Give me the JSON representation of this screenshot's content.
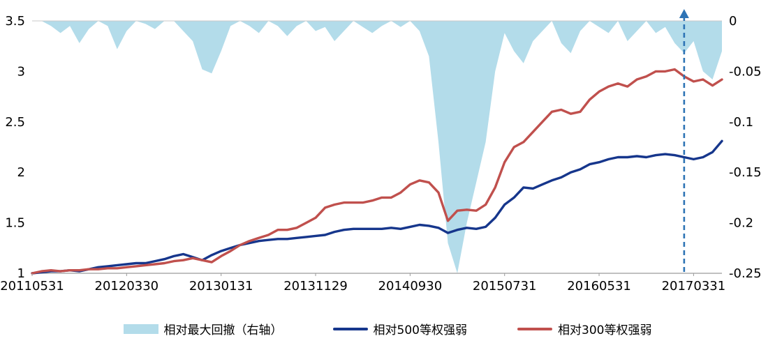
{
  "chart_data": {
    "type": "line",
    "title": "",
    "x_tick_labels": [
      "20110531",
      "20120330",
      "20130131",
      "20131129",
      "20140930",
      "20150731",
      "20160531",
      "20170331"
    ],
    "x_tick_indices": [
      0,
      10,
      20,
      30,
      40,
      50,
      60,
      70
    ],
    "left_axis": {
      "min": 1,
      "max": 3.5,
      "ticks": [
        1,
        1.5,
        2,
        2.5,
        3,
        3.5
      ]
    },
    "right_axis": {
      "min": -0.25,
      "max": 0,
      "ticks": [
        0,
        -0.05,
        -0.1,
        -0.15,
        -0.2,
        -0.25
      ]
    },
    "grid": "off",
    "legend_position": "bottom",
    "series": [
      {
        "name": "相对最大回撤（右轴）",
        "type": "area",
        "axis": "right",
        "color": "#B3DCEA",
        "values": [
          0,
          0,
          -0.005,
          -0.012,
          -0.005,
          -0.022,
          -0.008,
          0,
          -0.005,
          -0.028,
          -0.01,
          0,
          -0.003,
          -0.008,
          0,
          0,
          -0.01,
          -0.02,
          -0.048,
          -0.052,
          -0.03,
          -0.005,
          0,
          -0.005,
          -0.012,
          0,
          -0.005,
          -0.015,
          -0.005,
          0,
          -0.01,
          -0.006,
          -0.02,
          -0.01,
          0,
          -0.006,
          -0.012,
          -0.005,
          0,
          -0.006,
          0,
          -0.01,
          -0.035,
          -0.12,
          -0.22,
          -0.25,
          -0.2,
          -0.16,
          -0.12,
          -0.05,
          -0.012,
          -0.03,
          -0.042,
          -0.02,
          -0.01,
          0,
          -0.022,
          -0.032,
          -0.01,
          0,
          -0.006,
          -0.012,
          0,
          -0.02,
          -0.01,
          0,
          -0.012,
          -0.006,
          -0.022,
          -0.032,
          -0.02,
          -0.05,
          -0.058,
          -0.03
        ]
      },
      {
        "name": "相对500等权强弱",
        "type": "line",
        "axis": "left",
        "color": "#16368C",
        "values": [
          1.0,
          1.01,
          1.02,
          1.02,
          1.03,
          1.02,
          1.04,
          1.06,
          1.07,
          1.08,
          1.09,
          1.1,
          1.1,
          1.12,
          1.14,
          1.17,
          1.19,
          1.16,
          1.13,
          1.18,
          1.22,
          1.25,
          1.28,
          1.3,
          1.32,
          1.33,
          1.34,
          1.34,
          1.35,
          1.36,
          1.37,
          1.38,
          1.41,
          1.43,
          1.44,
          1.44,
          1.44,
          1.44,
          1.45,
          1.44,
          1.46,
          1.48,
          1.47,
          1.45,
          1.4,
          1.43,
          1.45,
          1.44,
          1.46,
          1.55,
          1.68,
          1.75,
          1.85,
          1.84,
          1.88,
          1.92,
          1.95,
          2.0,
          2.03,
          2.08,
          2.1,
          2.13,
          2.15,
          2.15,
          2.16,
          2.15,
          2.17,
          2.18,
          2.17,
          2.15,
          2.13,
          2.15,
          2.2,
          2.31
        ]
      },
      {
        "name": "相对300等权强弱",
        "type": "line",
        "axis": "left",
        "color": "#C0504D",
        "values": [
          1.0,
          1.02,
          1.03,
          1.02,
          1.03,
          1.03,
          1.04,
          1.04,
          1.05,
          1.05,
          1.06,
          1.07,
          1.08,
          1.09,
          1.1,
          1.12,
          1.13,
          1.15,
          1.13,
          1.11,
          1.17,
          1.22,
          1.28,
          1.32,
          1.35,
          1.38,
          1.43,
          1.43,
          1.45,
          1.5,
          1.55,
          1.65,
          1.68,
          1.7,
          1.7,
          1.7,
          1.72,
          1.75,
          1.75,
          1.8,
          1.88,
          1.92,
          1.9,
          1.8,
          1.52,
          1.62,
          1.63,
          1.62,
          1.68,
          1.85,
          2.1,
          2.25,
          2.3,
          2.4,
          2.5,
          2.6,
          2.62,
          2.58,
          2.6,
          2.72,
          2.8,
          2.85,
          2.88,
          2.85,
          2.92,
          2.95,
          3.0,
          3.0,
          3.02,
          2.95,
          2.9,
          2.92,
          2.86,
          2.92
        ]
      }
    ],
    "marker": {
      "type": "dashed-arrow-vertical",
      "x_index": 69,
      "color": "#2E74B5"
    }
  },
  "legend": {
    "area_label": "相对最大回撤（右轴）",
    "line1_label": "相对500等权强弱",
    "line2_label": "相对300等权强弱"
  },
  "colors": {
    "area": "#B3DCEA",
    "line_500": "#16368C",
    "line_300": "#C0504D",
    "marker_arrow": "#2E74B5",
    "axis_line": "#9a9a9a"
  }
}
